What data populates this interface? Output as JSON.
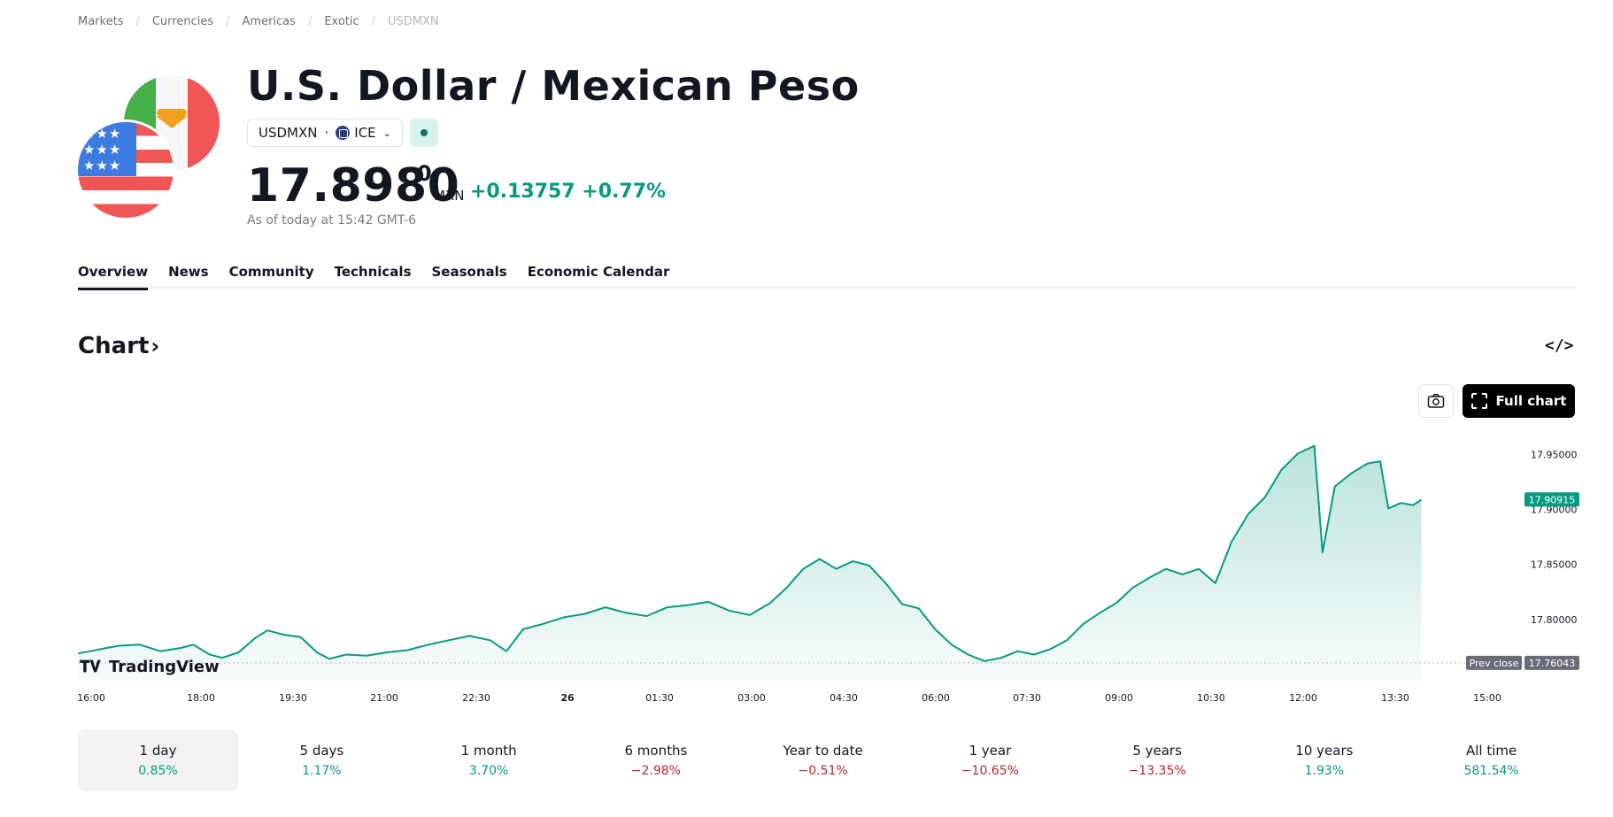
{
  "breadcrumb": [
    "Markets",
    "Currencies",
    "Americas",
    "Exotic",
    "USDMXN"
  ],
  "header": {
    "title": "U.S. Dollar / Mexican Peso",
    "symbol": "USDMXN",
    "exchange": "ICE",
    "price_main": "17.8980",
    "price_sup": "0",
    "currency": "MXN",
    "change": "+0.13757 +0.77%",
    "as_of": "As of today at 15:42 GMT-6"
  },
  "tabs": [
    "Overview",
    "News",
    "Community",
    "Technicals",
    "Seasonals",
    "Economic Calendar"
  ],
  "chart_section": {
    "heading": "Chart",
    "heading_arrow": "›",
    "embed_icon": "</>",
    "full_chart_label": "Full chart",
    "logo_text": "TradingView"
  },
  "colors": {
    "accent": "#089981",
    "negative": "#b22833"
  },
  "chart_data": {
    "type": "area",
    "x_ticks": [
      "16:00",
      "18:00",
      "19:30",
      "21:00",
      "22:30",
      "26",
      "01:30",
      "03:00",
      "04:30",
      "06:00",
      "07:30",
      "09:00",
      "10:30",
      "12:00",
      "13:30",
      "15:00"
    ],
    "y_ticks": [
      "17.95000",
      "17.90000",
      "17.85000",
      "17.80000"
    ],
    "ylim": [
      17.745,
      17.965
    ],
    "last_price_label": "17.90915",
    "prev_close_label": "Prev close",
    "prev_close_value": "17.76043",
    "prev_close": 17.76043,
    "series": [
      {
        "t": 0,
        "v": 17.769
      },
      {
        "t": 0.3,
        "v": 17.771
      },
      {
        "t": 0.7,
        "v": 17.774
      },
      {
        "t": 1.0,
        "v": 17.776
      },
      {
        "t": 1.5,
        "v": 17.777
      },
      {
        "t": 2.0,
        "v": 17.771
      },
      {
        "t": 2.5,
        "v": 17.774
      },
      {
        "t": 2.8,
        "v": 17.777
      },
      {
        "t": 3.2,
        "v": 17.768
      },
      {
        "t": 3.5,
        "v": 17.765
      },
      {
        "t": 3.9,
        "v": 17.77
      },
      {
        "t": 4.3,
        "v": 17.783
      },
      {
        "t": 4.6,
        "v": 17.79
      },
      {
        "t": 5.0,
        "v": 17.786
      },
      {
        "t": 5.4,
        "v": 17.784
      },
      {
        "t": 5.8,
        "v": 17.77
      },
      {
        "t": 6.1,
        "v": 17.764
      },
      {
        "t": 6.5,
        "v": 17.768
      },
      {
        "t": 7.0,
        "v": 17.767
      },
      {
        "t": 7.5,
        "v": 17.77
      },
      {
        "t": 8.0,
        "v": 17.772
      },
      {
        "t": 8.5,
        "v": 17.777
      },
      {
        "t": 9.0,
        "v": 17.781
      },
      {
        "t": 9.5,
        "v": 17.785
      },
      {
        "t": 10.0,
        "v": 17.781
      },
      {
        "t": 10.4,
        "v": 17.771
      },
      {
        "t": 10.8,
        "v": 17.791
      },
      {
        "t": 11.3,
        "v": 17.796
      },
      {
        "t": 11.8,
        "v": 17.802
      },
      {
        "t": 12.3,
        "v": 17.805
      },
      {
        "t": 12.8,
        "v": 17.811
      },
      {
        "t": 13.3,
        "v": 17.806
      },
      {
        "t": 13.8,
        "v": 17.803
      },
      {
        "t": 14.3,
        "v": 17.811
      },
      {
        "t": 14.8,
        "v": 17.813
      },
      {
        "t": 15.3,
        "v": 17.816
      },
      {
        "t": 15.8,
        "v": 17.808
      },
      {
        "t": 16.3,
        "v": 17.804
      },
      {
        "t": 16.8,
        "v": 17.815
      },
      {
        "t": 17.2,
        "v": 17.829
      },
      {
        "t": 17.6,
        "v": 17.846
      },
      {
        "t": 18.0,
        "v": 17.855
      },
      {
        "t": 18.4,
        "v": 17.846
      },
      {
        "t": 18.8,
        "v": 17.853
      },
      {
        "t": 19.2,
        "v": 17.849
      },
      {
        "t": 19.6,
        "v": 17.833
      },
      {
        "t": 20.0,
        "v": 17.814
      },
      {
        "t": 20.4,
        "v": 17.81
      },
      {
        "t": 20.8,
        "v": 17.791
      },
      {
        "t": 21.2,
        "v": 17.777
      },
      {
        "t": 21.6,
        "v": 17.768
      },
      {
        "t": 22.0,
        "v": 17.762
      },
      {
        "t": 22.4,
        "v": 17.765
      },
      {
        "t": 22.8,
        "v": 17.771
      },
      {
        "t": 23.2,
        "v": 17.768
      },
      {
        "t": 23.6,
        "v": 17.773
      },
      {
        "t": 24.0,
        "v": 17.781
      },
      {
        "t": 24.4,
        "v": 17.796
      },
      {
        "t": 24.8,
        "v": 17.806
      },
      {
        "t": 25.2,
        "v": 17.815
      },
      {
        "t": 25.6,
        "v": 17.829
      },
      {
        "t": 26.0,
        "v": 17.838
      },
      {
        "t": 26.4,
        "v": 17.846
      },
      {
        "t": 26.8,
        "v": 17.841
      },
      {
        "t": 27.2,
        "v": 17.846
      },
      {
        "t": 27.6,
        "v": 17.833
      },
      {
        "t": 28.0,
        "v": 17.871
      },
      {
        "t": 28.4,
        "v": 17.896
      },
      {
        "t": 28.8,
        "v": 17.911
      },
      {
        "t": 29.2,
        "v": 17.936
      },
      {
        "t": 29.6,
        "v": 17.951
      },
      {
        "t": 30.0,
        "v": 17.958
      },
      {
        "t": 30.2,
        "v": 17.861
      },
      {
        "t": 30.5,
        "v": 17.921
      },
      {
        "t": 30.9,
        "v": 17.933
      },
      {
        "t": 31.3,
        "v": 17.942
      },
      {
        "t": 31.6,
        "v": 17.944
      },
      {
        "t": 31.8,
        "v": 17.901
      },
      {
        "t": 32.1,
        "v": 17.906
      },
      {
        "t": 32.4,
        "v": 17.904
      },
      {
        "t": 32.6,
        "v": 17.909
      }
    ],
    "grid": false
  },
  "periods": [
    {
      "label": "1 day",
      "value": "0.85%",
      "sign": "pos"
    },
    {
      "label": "5 days",
      "value": "1.17%",
      "sign": "pos"
    },
    {
      "label": "1 month",
      "value": "3.70%",
      "sign": "pos"
    },
    {
      "label": "6 months",
      "value": "−2.98%",
      "sign": "neg"
    },
    {
      "label": "Year to date",
      "value": "−0.51%",
      "sign": "neg"
    },
    {
      "label": "1 year",
      "value": "−10.65%",
      "sign": "neg"
    },
    {
      "label": "5 years",
      "value": "−13.35%",
      "sign": "neg"
    },
    {
      "label": "10 years",
      "value": "1.93%",
      "sign": "pos"
    },
    {
      "label": "All time",
      "value": "581.54%",
      "sign": "pos"
    }
  ]
}
